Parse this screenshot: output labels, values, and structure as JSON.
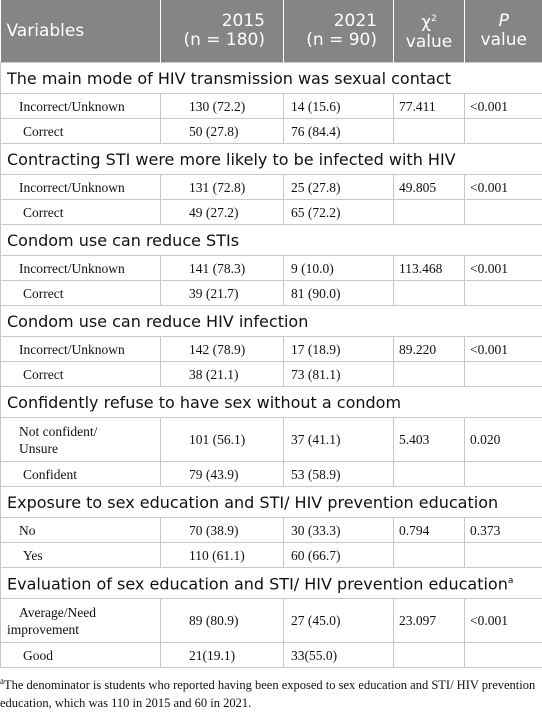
{
  "header": {
    "variables": "Variables",
    "col2015": [
      "2015",
      "(n = 180)"
    ],
    "col2021": [
      "2021",
      "(n = 90)"
    ],
    "chi": {
      "symbol": "χ",
      "sup": "2",
      "word": "value"
    },
    "p": {
      "symbol": "P",
      "word": "value"
    }
  },
  "sections": [
    {
      "title": "The main mode of HIV transmission was sexual contact",
      "rows": [
        [
          [
            "Incorrect/Unknown"
          ],
          "130 (72.2)",
          "14 (15.6)",
          "77.411",
          "<0.001"
        ],
        [
          [
            "Correct"
          ],
          "50 (27.8)",
          "76 (84.4)"
        ]
      ]
    },
    {
      "title": "Contracting STI were more likely to be infected with HIV",
      "rows": [
        [
          [
            "Incorrect/Unknown"
          ],
          "131 (72.8)",
          "25 (27.8)",
          "49.805",
          "<0.001"
        ],
        [
          [
            "Correct"
          ],
          "49 (27.2)",
          "65 (72.2)"
        ]
      ]
    },
    {
      "title": "Condom use can reduce STIs",
      "rows": [
        [
          [
            "Incorrect/Unknown"
          ],
          "141 (78.3)",
          "9 (10.0)",
          "113.468",
          "<0.001"
        ],
        [
          [
            "Correct"
          ],
          "39 (21.7)",
          "81 (90.0)"
        ]
      ]
    },
    {
      "title": "Condom use can reduce HIV infection",
      "rows": [
        [
          [
            "Incorrect/Unknown"
          ],
          "142 (78.9)",
          "17 (18.9)",
          "89.220",
          "<0.001"
        ],
        [
          [
            "Correct"
          ],
          "38 (21.1)",
          "73 (81.1)"
        ]
      ]
    },
    {
      "title": "Confidently refuse to have sex without a condom",
      "rows": [
        [
          [
            "Not confident/",
            "Unsure"
          ],
          "101 (56.1)",
          "37 (41.1)",
          "5.403",
          "0.020"
        ],
        [
          [
            "Confident"
          ],
          "79 (43.9)",
          "53 (58.9)"
        ]
      ]
    },
    {
      "title": "Exposure to sex education and STI/ HIV prevention education",
      "rows": [
        [
          [
            "No"
          ],
          "70 (38.9)",
          "30 (33.3)",
          "0.794",
          "0.373"
        ],
        [
          [
            "Yes"
          ],
          "110 (61.1)",
          "60 (66.7)"
        ]
      ]
    },
    {
      "title": "Evaluation of sex education and STI/ HIV prevention education",
      "title_note": "a",
      "rows": [
        [
          [
            "Average/Need",
            "improvement"
          ],
          "89 (80.9)",
          "27 (45.0)",
          "23.097",
          "<0.001"
        ],
        [
          [
            "Good"
          ],
          "21(19.1)",
          "33(55.0)"
        ]
      ]
    }
  ],
  "footnote": {
    "mark": "a",
    "text": "The denominator is students who reported having been exposed to sex education and STI/ HIV prevention education, which was 110 in 2015 and 60 in 2021."
  }
}
